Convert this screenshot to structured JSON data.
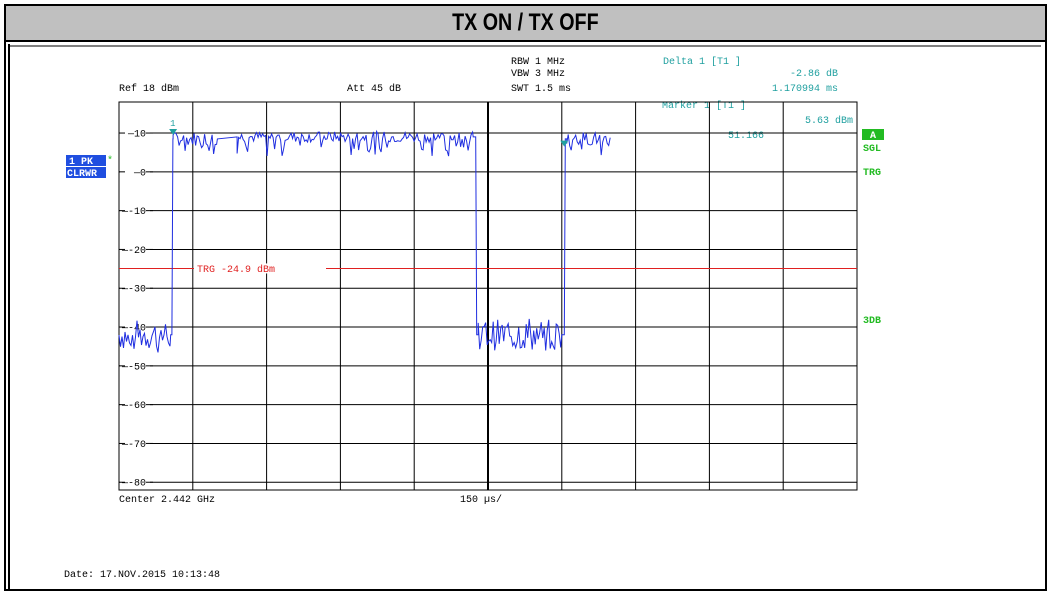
{
  "title": "TX ON / TX OFF",
  "header": {
    "rbw": "RBW 1 MHz",
    "vbw": "VBW 3 MHz",
    "swt": "SWT 1.5 ms",
    "ref": "Ref  18 dBm",
    "att": "Att  45 dB",
    "delta_label": "Delta 1 [T1 ]",
    "delta_level": "-2.86 dB",
    "delta_time": "1.170994 ms",
    "marker_label": "Marker 1 [T1 ]",
    "marker_level": "5.63 dBm",
    "marker_time": "51.166"
  },
  "left_badges": {
    "trace": "1 PK",
    "mode": "CLRWR",
    "star": "*"
  },
  "right_badges": {
    "a": "A",
    "sgl": "SGL",
    "trg": "TRG",
    "threedb": "3DB"
  },
  "footer": {
    "center": "Center 2.442 GHz",
    "span": "150 µs/",
    "date": "Date: 17.NOV.2015   10:13:48"
  },
  "trigger_label": "TRG -24.9 dBm",
  "colors": {
    "trace": "#1f2ee0",
    "trigger": "#e02020",
    "marker": "#20a0a0",
    "badge_blue": "#1f4ee0",
    "badge_green": "#22bb22",
    "grid": "#000000"
  },
  "chart_data": {
    "type": "line",
    "y_ticks": [
      "10",
      "0",
      "-10",
      "-20",
      "-30",
      "-40",
      "-50",
      "-60",
      "-70",
      "-80"
    ],
    "ylim": [
      -82,
      18
    ],
    "xlim": [
      0,
      1.5
    ],
    "x_divisions": 10,
    "y_divisions": 10,
    "x_unit": "ms",
    "y_unit": "dBm",
    "trigger_level": -24.9,
    "series": [
      {
        "points": [
          [
            0.0,
            -42
          ],
          [
            0.1,
            -43
          ],
          [
            0.105,
            -38
          ],
          [
            0.11,
            8
          ],
          [
            0.2,
            8
          ],
          [
            0.25,
            8
          ],
          [
            0.25,
            9
          ],
          [
            0.68,
            9
          ],
          [
            0.7,
            9
          ],
          [
            0.71,
            8
          ],
          [
            0.72,
            8
          ],
          [
            0.72,
            -42
          ],
          [
            0.75,
            -42
          ],
          [
            0.9,
            -42
          ],
          [
            0.95,
            -42
          ],
          [
            0.96,
            8
          ],
          [
            1.25,
            8
          ],
          [
            1.5,
            8
          ]
        ],
        "segments": [
          {
            "x_from": 0.0,
            "x_to": 0.105,
            "level": -42,
            "noise": 4
          },
          {
            "x_from": 0.11,
            "x_to": 0.2,
            "level": 8.5,
            "noise": 1.8
          },
          {
            "x_from": 0.24,
            "x_to": 0.72,
            "level": 9,
            "noise": 1.4
          },
          {
            "x_from": 0.73,
            "x_to": 0.9,
            "level": -42,
            "noise": 4
          },
          {
            "x_from": 0.91,
            "x_to": 1.0,
            "level": 8.5,
            "noise": 1.8
          }
        ]
      }
    ],
    "markers": [
      {
        "label": "1",
        "x": 0.11,
        "y": 10
      },
      {
        "label": "",
        "x": 0.905,
        "y": 7
      }
    ]
  }
}
